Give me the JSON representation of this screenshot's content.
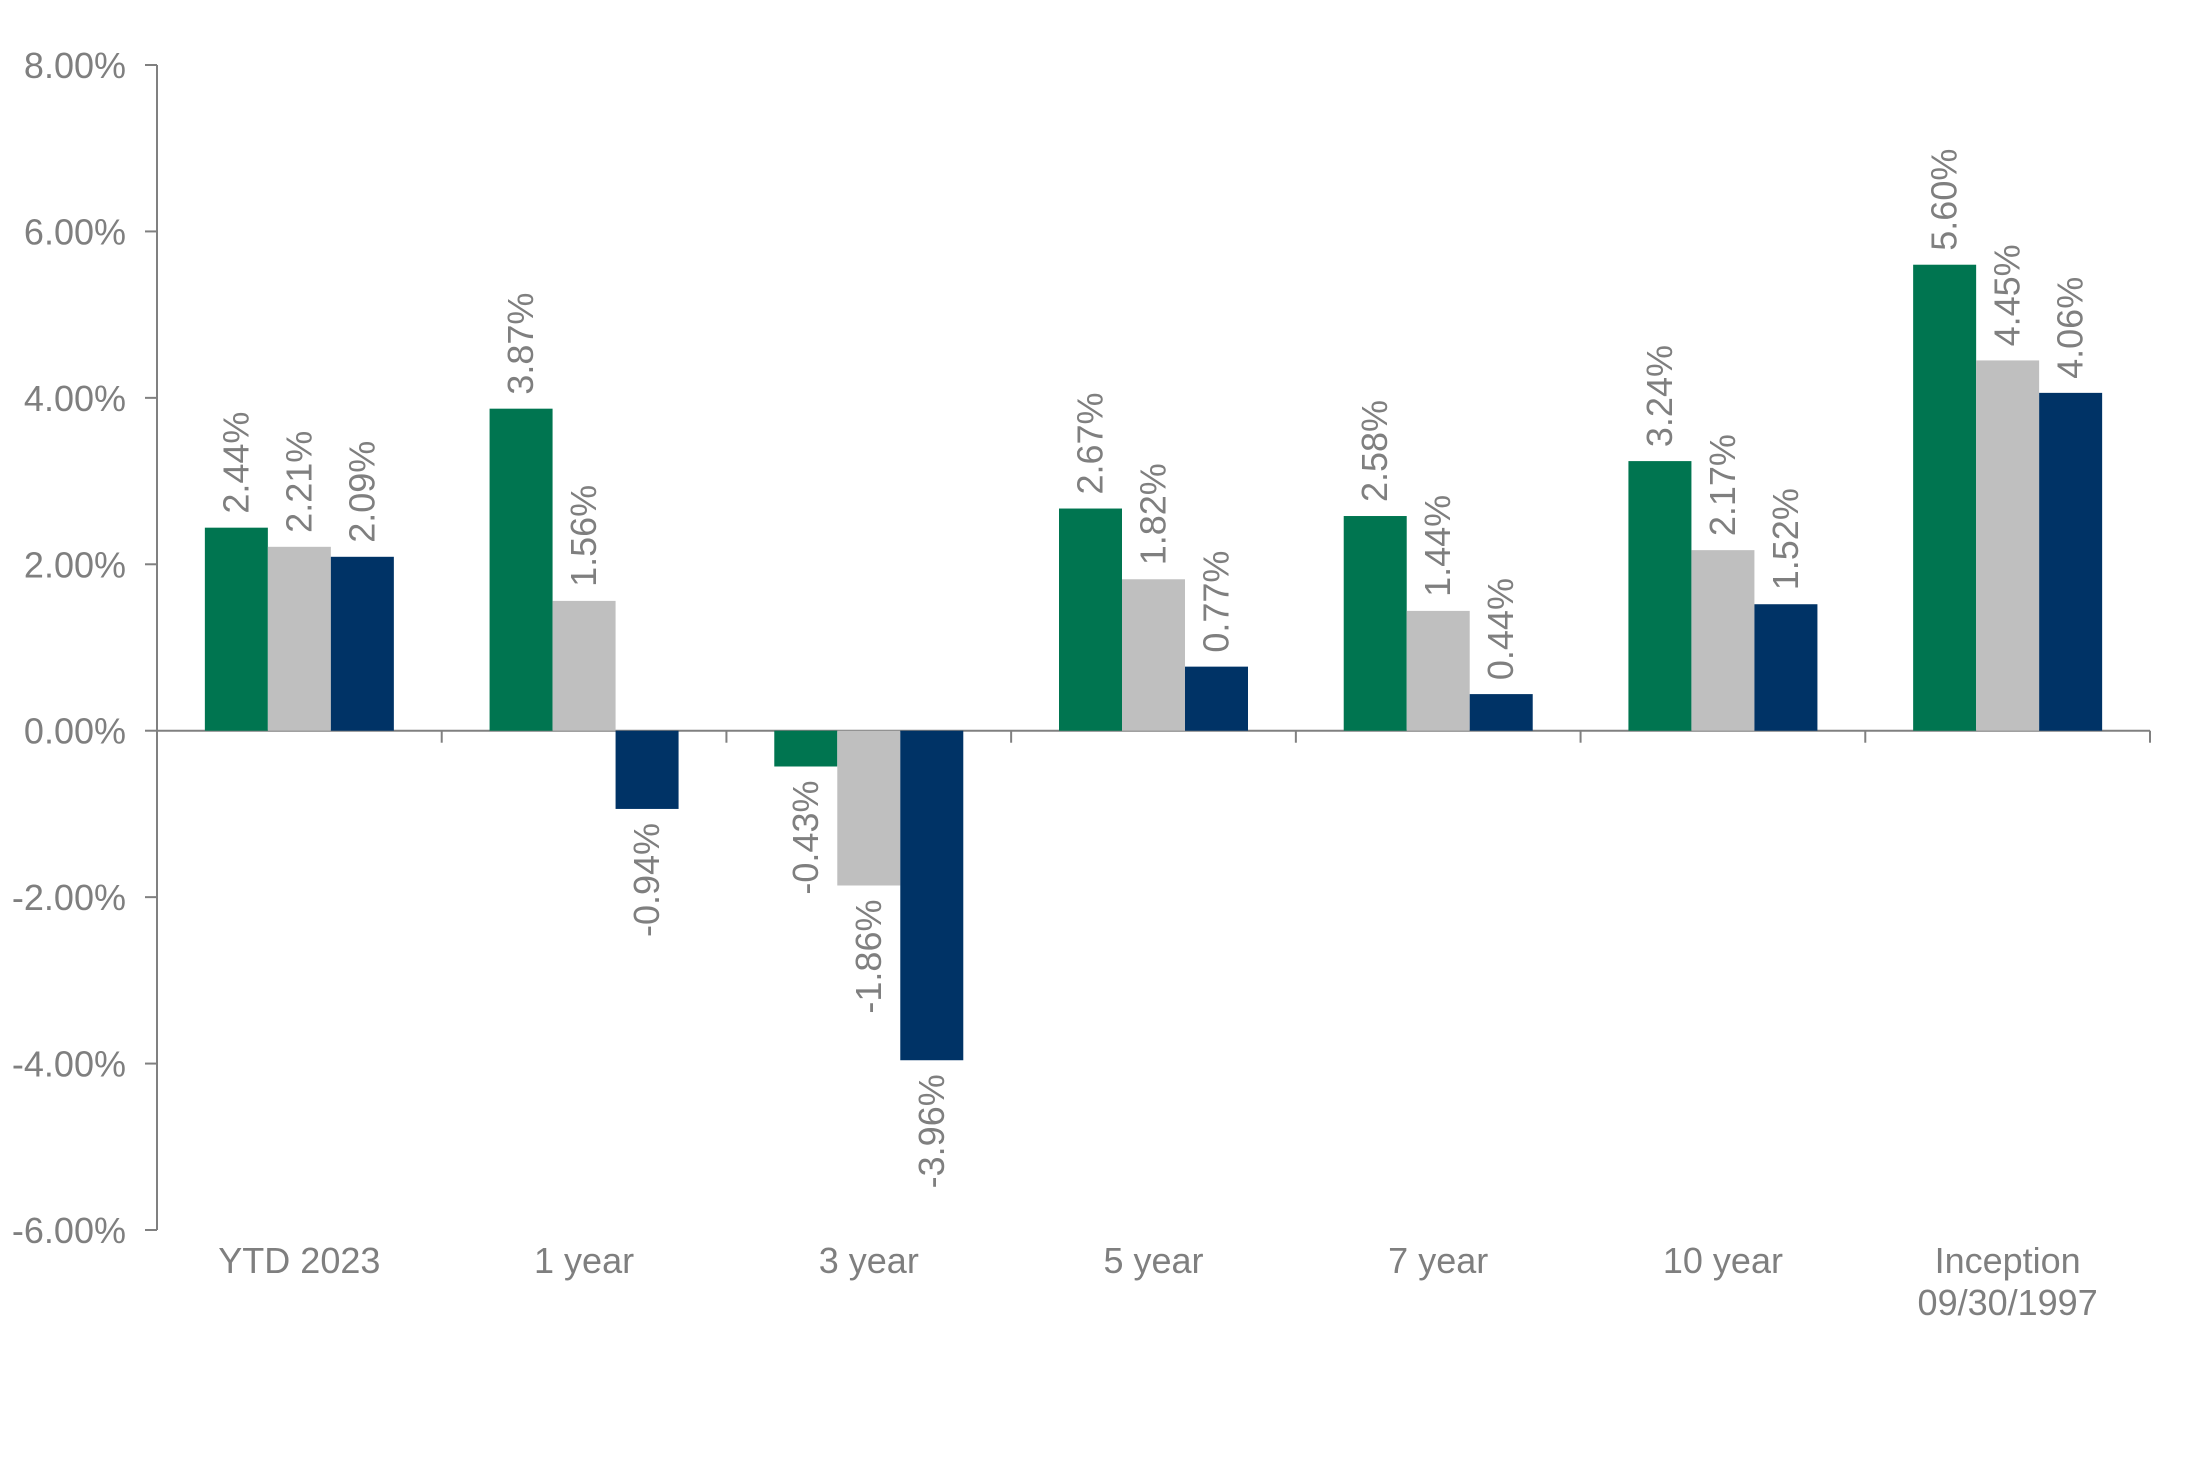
{
  "chart_data": {
    "type": "bar",
    "categories": [
      [
        "YTD 2023"
      ],
      [
        "1 year"
      ],
      [
        "3 year"
      ],
      [
        "5 year"
      ],
      [
        "7 year"
      ],
      [
        "10 year"
      ],
      [
        "Inception",
        "09/30/1997"
      ]
    ],
    "series": [
      {
        "color": "#007550",
        "values": [
          2.44,
          3.87,
          -0.43,
          2.67,
          2.58,
          3.24,
          5.6
        ],
        "labels": [
          "2.44%",
          "3.87%",
          "-0.43%",
          "2.67%",
          "2.58%",
          "3.24%",
          "5.60%"
        ]
      },
      {
        "color": "#bfbfbf",
        "values": [
          2.21,
          1.56,
          -1.86,
          1.82,
          1.44,
          2.17,
          4.45
        ],
        "labels": [
          "2.21%",
          "1.56%",
          "-1.86%",
          "1.82%",
          "1.44%",
          "2.17%",
          "4.45%"
        ]
      },
      {
        "color": "#003366",
        "values": [
          2.09,
          -0.94,
          -3.96,
          0.77,
          0.44,
          1.52,
          4.06
        ],
        "labels": [
          "2.09%",
          "-0.94%",
          "-3.96%",
          "0.77%",
          "0.44%",
          "1.52%",
          "4.06%"
        ]
      }
    ],
    "ylim": [
      -6,
      8
    ],
    "yticks": [
      8,
      6,
      4,
      2,
      0,
      -2,
      -4,
      -6
    ],
    "ytick_labels": [
      "8.00%",
      "6.00%",
      "4.00%",
      "2.00%",
      "0.00%",
      "-2.00%",
      "-4.00%",
      "-6.00%"
    ],
    "xlabel": "",
    "ylabel": "",
    "legend": "none",
    "grid": false,
    "axis_color": "#808080",
    "text_color": "#7f7f7f"
  }
}
